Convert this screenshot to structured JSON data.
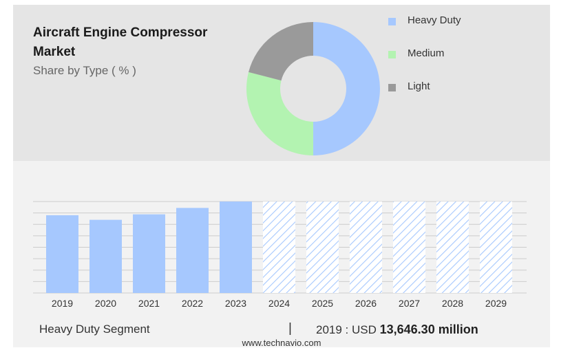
{
  "header": {
    "title": "Aircraft Engine Compressor Market",
    "subtitle": "Share by Type ( % )"
  },
  "chart_data": [
    {
      "type": "pie",
      "style": "donut",
      "title": "Share by Type ( % )",
      "legend_position": "right",
      "slices": [
        {
          "label": "Heavy Duty",
          "value": 50,
          "color": "#a6c8fe"
        },
        {
          "label": "Medium",
          "value": 29,
          "color": "#b3f3b1"
        },
        {
          "label": "Light",
          "value": 21,
          "color": "#9a9a9a"
        }
      ]
    },
    {
      "type": "bar",
      "series_name": "Heavy Duty Segment",
      "categories": [
        "2019",
        "2020",
        "2021",
        "2022",
        "2023",
        "2024",
        "2025",
        "2026",
        "2027",
        "2028",
        "2029"
      ],
      "values": [
        85,
        80,
        86,
        93,
        100,
        100,
        100,
        100,
        100,
        100,
        100
      ],
      "forecast_from_index": 5,
      "colors": {
        "actual": "#a6c8fe",
        "forecast": "#a6c8fe"
      },
      "ylim": [
        0,
        100
      ],
      "grid": true
    }
  ],
  "footer": {
    "segment_label": "Heavy Duty Segment",
    "divider": "|",
    "value_prefix": "2019 : USD",
    "value_amount": "13,646.30 million",
    "source": "www.technavio.com"
  }
}
